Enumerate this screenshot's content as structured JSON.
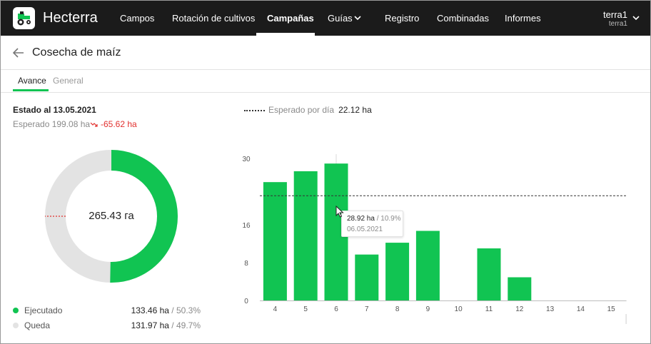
{
  "app": {
    "brand": "Hecterra",
    "logo_icon": "tractor-icon"
  },
  "nav": {
    "items": [
      {
        "label": "Campos"
      },
      {
        "label": "Rotación de cultivos"
      },
      {
        "label": "Campañas",
        "active": true
      },
      {
        "label": "Guías",
        "dropdown": true
      },
      {
        "label": "Registro"
      },
      {
        "label": "Combinadas"
      },
      {
        "label": "Informes"
      }
    ]
  },
  "user": {
    "name": "terra1",
    "sub": "terra1"
  },
  "page": {
    "title": "Cosecha de maíz"
  },
  "tabs": [
    {
      "label": "Avance",
      "active": true
    },
    {
      "label": "General"
    }
  ],
  "summary": {
    "estado": "Estado al 13.05.2021",
    "esperado": "Esperado 199.08 ha",
    "diff": "-65.62 ha",
    "total": "265.43 га"
  },
  "legend": [
    {
      "label": "Ejecutado",
      "value": "133.46 ha",
      "pct": " / 50.3%",
      "color": "#11c452"
    },
    {
      "label": "Queda",
      "value": "131.97 ha",
      "pct": " / 49.7%",
      "color": "#e3e3e3"
    }
  ],
  "expected_per_day": {
    "label": "Esperado por día",
    "value": "22.12 ha"
  },
  "tooltip": {
    "value": "28.92 ha",
    "pct": " / 10.9%",
    "date": "06.05.2021"
  },
  "colors": {
    "accent": "#11c452",
    "remaining": "#e3e3e3",
    "negative": "#e2302e",
    "topbar": "#1b1b1b"
  },
  "chart_data": {
    "type": "bar",
    "categories": [
      "4",
      "5",
      "6",
      "7",
      "8",
      "9",
      "10",
      "11",
      "12",
      "13",
      "14",
      "15"
    ],
    "values": [
      25,
      27.3,
      28.92,
      9.7,
      12.2,
      14.7,
      0,
      11,
      4.9,
      0,
      0,
      0
    ],
    "yticks": [
      "0",
      "8",
      "16",
      "30"
    ],
    "ylim": [
      0,
      30
    ],
    "reference_line": 22.12,
    "highlight_category": "6",
    "donut": {
      "executed": 133.46,
      "remaining": 131.97,
      "expected": 199.08
    }
  }
}
